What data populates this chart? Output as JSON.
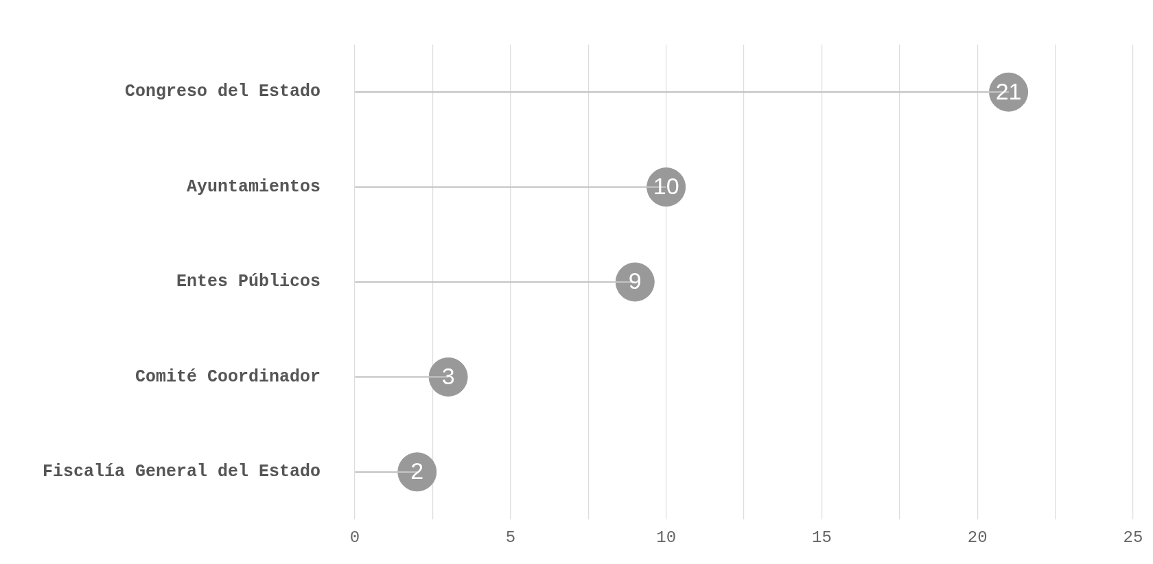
{
  "chart_data": {
    "type": "lollipop",
    "orientation": "horizontal",
    "categories": [
      "Congreso del Estado",
      "Ayuntamientos",
      "Entes Públicos",
      "Comité Coordinador",
      "Fiscalía General del Estado"
    ],
    "values": [
      21,
      10,
      9,
      3,
      2
    ],
    "color": "#999999",
    "xlim": [
      0,
      25
    ],
    "xticks": [
      0,
      {
        "value": 2.5,
        "label": null
      },
      5,
      {
        "value": 7.5,
        "label": null
      },
      10,
      {
        "value": 12.5,
        "label": null
      },
      15,
      {
        "value": 17.5,
        "label": null
      },
      20,
      {
        "value": 22.5,
        "label": null
      },
      25
    ],
    "grid": "x",
    "legend": false,
    "data_labels": true,
    "marker": "circle"
  }
}
